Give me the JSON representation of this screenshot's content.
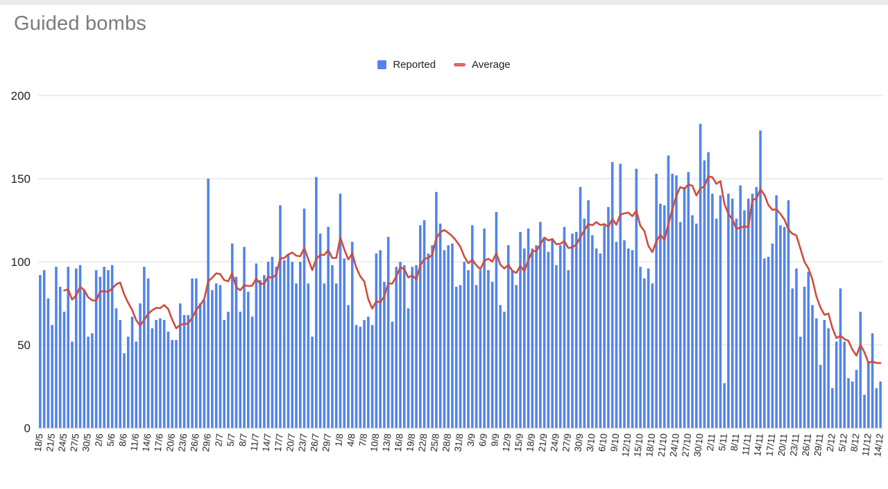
{
  "title": "Guided bombs",
  "legend": {
    "reported": "Reported",
    "average": "Average"
  },
  "colors": {
    "reported_bar": "#5383ec",
    "average_line": "#cf4a3d",
    "average_swatch": "#e06666",
    "gridline": "#d9d9d9",
    "axis_text": "#222222",
    "title_text": "#7a7a7a"
  },
  "chart_data": {
    "type": "bar",
    "series": [
      {
        "name": "Reported",
        "type": "bar"
      },
      {
        "name": "Average",
        "type": "line",
        "derived": "trailing-mean",
        "window": 7
      }
    ],
    "title": "Guided bombs",
    "xlabel": "",
    "ylabel": "",
    "ylim": [
      0,
      200
    ],
    "yticks": [
      0,
      50,
      100,
      150,
      200
    ],
    "x_tick_every": 3,
    "grid": "horizontal",
    "legend_position": "top-center",
    "categories": [
      "18/5",
      "19/5",
      "20/5",
      "21/5",
      "22/5",
      "23/5",
      "24/5",
      "25/5",
      "26/5",
      "27/5",
      "28/5",
      "29/5",
      "30/5",
      "31/5",
      "1/6",
      "2/6",
      "3/6",
      "4/6",
      "5/6",
      "6/6",
      "7/6",
      "8/6",
      "9/6",
      "10/6",
      "11/6",
      "12/6",
      "13/6",
      "14/6",
      "15/6",
      "16/6",
      "17/6",
      "18/6",
      "19/6",
      "20/6",
      "21/6",
      "22/6",
      "23/6",
      "24/6",
      "25/6",
      "26/6",
      "27/6",
      "28/6",
      "29/6",
      "30/6",
      "1/7",
      "2/7",
      "3/7",
      "4/7",
      "5/7",
      "6/7",
      "7/7",
      "8/7",
      "9/7",
      "10/7",
      "11/7",
      "12/7",
      "13/7",
      "14/7",
      "15/7",
      "16/7",
      "17/7",
      "18/7",
      "19/7",
      "20/7",
      "21/7",
      "22/7",
      "23/7",
      "24/7",
      "25/7",
      "26/7",
      "27/7",
      "28/7",
      "29/7",
      "30/7",
      "31/7",
      "1/8",
      "2/8",
      "3/8",
      "4/8",
      "5/8",
      "6/8",
      "7/8",
      "8/8",
      "9/8",
      "10/8",
      "11/8",
      "12/8",
      "13/8",
      "14/8",
      "15/8",
      "16/8",
      "17/8",
      "18/8",
      "19/8",
      "20/8",
      "21/8",
      "22/8",
      "23/8",
      "24/8",
      "25/8",
      "26/8",
      "27/8",
      "28/8",
      "29/8",
      "30/8",
      "31/8",
      "1/9",
      "2/9",
      "3/9",
      "4/9",
      "5/9",
      "6/9",
      "7/9",
      "8/9",
      "9/9",
      "10/9",
      "11/9",
      "12/9",
      "13/9",
      "14/9",
      "15/9",
      "16/9",
      "17/9",
      "18/9",
      "19/9",
      "20/9",
      "21/9",
      "22/9",
      "23/9",
      "24/9",
      "25/9",
      "26/9",
      "27/9",
      "28/9",
      "29/9",
      "30/9",
      "1/10",
      "2/10",
      "3/10",
      "4/10",
      "5/10",
      "6/10",
      "7/10",
      "8/10",
      "9/10",
      "10/10",
      "11/10",
      "12/10",
      "13/10",
      "14/10",
      "15/10",
      "16/10",
      "17/10",
      "18/10",
      "19/10",
      "20/10",
      "21/10",
      "22/10",
      "23/10",
      "24/10",
      "25/10",
      "26/10",
      "27/10",
      "28/10",
      "29/10",
      "30/10",
      "31/10",
      "1/11",
      "2/11",
      "3/11",
      "4/11",
      "5/11",
      "6/11",
      "7/11",
      "8/11",
      "9/11",
      "10/11",
      "11/11",
      "12/11",
      "13/11",
      "14/11",
      "15/11",
      "16/11",
      "17/11",
      "18/11",
      "19/11",
      "20/11",
      "21/11",
      "22/11",
      "23/11",
      "24/11",
      "25/11",
      "26/11",
      "27/11",
      "28/11",
      "29/11",
      "30/11",
      "1/12",
      "2/12",
      "3/12",
      "4/12",
      "5/12",
      "6/12",
      "7/12",
      "8/12",
      "9/12",
      "10/12",
      "11/12",
      "12/12",
      "13/12",
      "14/12"
    ],
    "values": [
      92,
      95,
      78,
      62,
      97,
      85,
      70,
      97,
      52,
      96,
      98,
      83,
      55,
      57,
      95,
      91,
      97,
      95,
      98,
      72,
      65,
      45,
      55,
      67,
      52,
      75,
      97,
      90,
      60,
      65,
      66,
      65,
      58,
      53,
      53,
      75,
      68,
      68,
      90,
      90,
      75,
      77,
      150,
      83,
      87,
      86,
      65,
      70,
      111,
      91,
      70,
      109,
      82,
      67,
      99,
      89,
      92,
      100,
      103,
      97,
      134,
      101,
      104,
      100,
      87,
      100,
      132,
      87,
      55,
      151,
      117,
      87,
      121,
      98,
      87,
      141,
      102,
      74,
      112,
      62,
      61,
      65,
      67,
      62,
      105,
      107,
      88,
      115,
      64,
      97,
      100,
      98,
      72,
      97,
      98,
      122,
      125,
      105,
      110,
      142,
      123,
      107,
      110,
      111,
      85,
      86,
      100,
      95,
      122,
      86,
      95,
      120,
      95,
      88,
      130,
      74,
      70,
      110,
      95,
      86,
      118,
      108,
      120,
      108,
      110,
      124,
      114,
      106,
      114,
      98,
      110,
      121,
      95,
      117,
      118,
      145,
      126,
      137,
      116,
      108,
      105,
      122,
      133,
      160,
      112,
      159,
      113,
      108,
      107,
      156,
      97,
      90,
      96,
      87,
      153,
      135,
      134,
      164,
      153,
      152,
      124,
      145,
      154,
      128,
      123,
      183,
      161,
      166,
      141,
      126,
      140,
      27,
      141,
      138,
      126,
      146,
      131,
      138,
      141,
      145,
      179,
      102,
      103,
      111,
      140,
      122,
      121,
      137,
      84,
      96,
      55,
      85,
      94,
      74,
      66,
      38,
      65,
      60,
      24,
      52,
      84,
      52,
      30,
      28,
      35,
      70,
      20,
      40,
      57,
      24,
      28
    ]
  },
  "geometry_note": "plot area 0..200 on y; x ticks every 3rd day from 18/5 to 11/12"
}
